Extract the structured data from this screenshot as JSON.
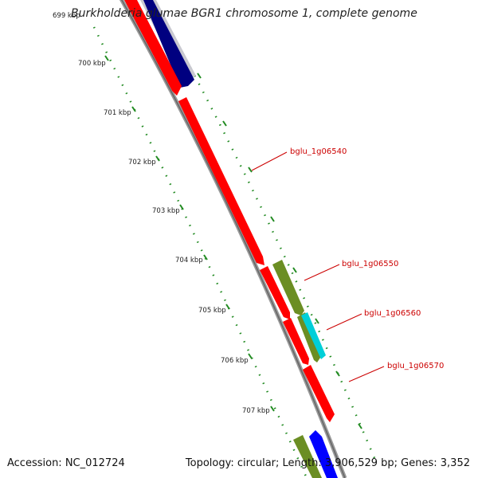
{
  "title": "Burkholderia glumae BGR1 chromosome 1, complete genome",
  "footer": {
    "accession": "Accession: NC_012724",
    "summary": "Topology: circular; Length: 3,906,529 bp; Genes: 3,352"
  },
  "ruler": {
    "labels": [
      "699 kbp",
      "700 kbp",
      "701 kbp",
      "702 kbp",
      "703 kbp",
      "704 kbp",
      "705 kbp",
      "706 kbp",
      "707 kbp"
    ]
  },
  "genes": [
    {
      "label": "bglu_1g06540",
      "color": "#ff0000"
    },
    {
      "label": "bglu_1g06550",
      "color": "#6b8e23"
    },
    {
      "label": "bglu_1g06560",
      "color": "#00cfd8"
    },
    {
      "label": "bglu_1g06570",
      "color": "#ff0000"
    }
  ],
  "colors": {
    "backbone": "#888888",
    "forward": "#ff0000",
    "navy": "#000080",
    "olive": "#6b8e23",
    "cyan": "#00cfd8",
    "blue": "#0000ff",
    "tick": "#228b22",
    "label_line": "#cc0000"
  }
}
